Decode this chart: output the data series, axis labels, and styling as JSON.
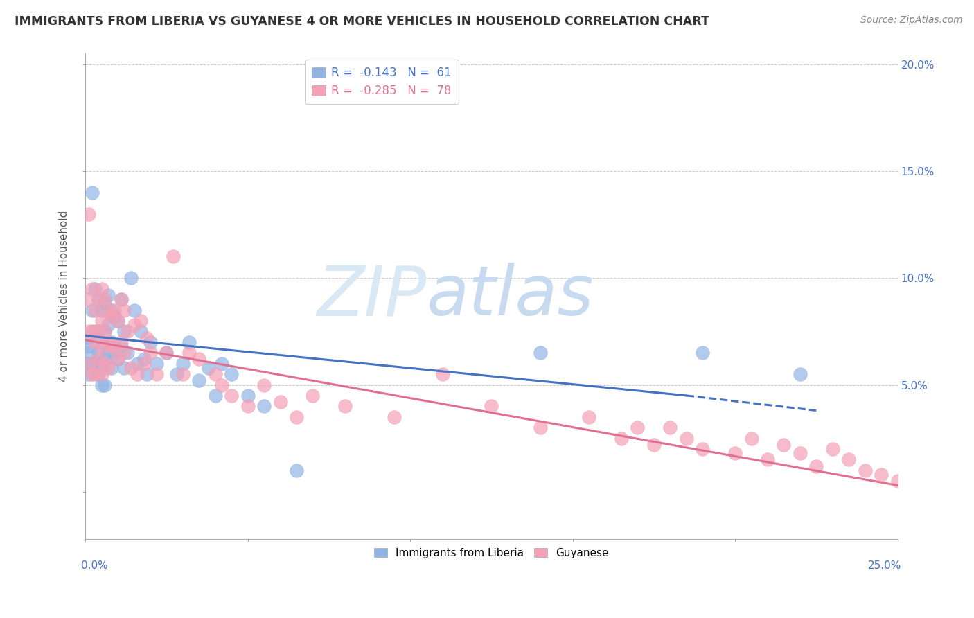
{
  "title": "IMMIGRANTS FROM LIBERIA VS GUYANESE 4 OR MORE VEHICLES IN HOUSEHOLD CORRELATION CHART",
  "source": "Source: ZipAtlas.com",
  "ylabel": "4 or more Vehicles in Household",
  "legend_entry1": "R =  -0.143   N =  61",
  "legend_entry2": "R =  -0.285   N =  78",
  "legend_label1": "Immigrants from Liberia",
  "legend_label2": "Guyanese",
  "color1": "#92b4e3",
  "color2": "#f4a0b5",
  "trendline1_color": "#4472c4",
  "trendline2_color": "#e07090",
  "watermark_zip": "ZIP",
  "watermark_atlas": "atlas",
  "xmin": 0.0,
  "xmax": 0.25,
  "ymin": -0.022,
  "ymax": 0.205,
  "liberia_x": [
    0.0005,
    0.0008,
    0.001,
    0.001,
    0.0015,
    0.002,
    0.002,
    0.002,
    0.003,
    0.003,
    0.003,
    0.004,
    0.004,
    0.004,
    0.004,
    0.005,
    0.005,
    0.005,
    0.005,
    0.006,
    0.006,
    0.006,
    0.006,
    0.007,
    0.007,
    0.007,
    0.008,
    0.008,
    0.008,
    0.009,
    0.009,
    0.01,
    0.01,
    0.011,
    0.011,
    0.012,
    0.012,
    0.013,
    0.014,
    0.015,
    0.016,
    0.017,
    0.018,
    0.019,
    0.02,
    0.022,
    0.025,
    0.028,
    0.03,
    0.032,
    0.035,
    0.038,
    0.04,
    0.042,
    0.045,
    0.05,
    0.055,
    0.065,
    0.14,
    0.19,
    0.22
  ],
  "liberia_y": [
    0.06,
    0.068,
    0.072,
    0.055,
    0.065,
    0.14,
    0.085,
    0.06,
    0.095,
    0.075,
    0.06,
    0.09,
    0.075,
    0.065,
    0.055,
    0.085,
    0.07,
    0.06,
    0.05,
    0.088,
    0.075,
    0.062,
    0.05,
    0.092,
    0.078,
    0.065,
    0.085,
    0.07,
    0.058,
    0.082,
    0.065,
    0.08,
    0.062,
    0.09,
    0.068,
    0.075,
    0.058,
    0.065,
    0.1,
    0.085,
    0.06,
    0.075,
    0.062,
    0.055,
    0.07,
    0.06,
    0.065,
    0.055,
    0.06,
    0.07,
    0.052,
    0.058,
    0.045,
    0.06,
    0.055,
    0.045,
    0.04,
    0.01,
    0.065,
    0.065,
    0.055
  ],
  "guyanese_x": [
    0.0005,
    0.001,
    0.001,
    0.0015,
    0.002,
    0.002,
    0.002,
    0.003,
    0.003,
    0.003,
    0.004,
    0.004,
    0.004,
    0.005,
    0.005,
    0.005,
    0.005,
    0.006,
    0.006,
    0.006,
    0.007,
    0.007,
    0.007,
    0.008,
    0.008,
    0.009,
    0.009,
    0.01,
    0.01,
    0.011,
    0.011,
    0.012,
    0.012,
    0.013,
    0.014,
    0.015,
    0.016,
    0.017,
    0.018,
    0.019,
    0.02,
    0.022,
    0.025,
    0.027,
    0.03,
    0.032,
    0.035,
    0.04,
    0.042,
    0.045,
    0.05,
    0.055,
    0.06,
    0.065,
    0.07,
    0.08,
    0.095,
    0.11,
    0.125,
    0.14,
    0.155,
    0.165,
    0.17,
    0.175,
    0.18,
    0.185,
    0.19,
    0.2,
    0.205,
    0.21,
    0.215,
    0.22,
    0.225,
    0.23,
    0.235,
    0.24,
    0.245,
    0.25
  ],
  "guyanese_y": [
    0.09,
    0.13,
    0.075,
    0.06,
    0.095,
    0.075,
    0.055,
    0.085,
    0.07,
    0.055,
    0.09,
    0.075,
    0.062,
    0.095,
    0.08,
    0.068,
    0.055,
    0.09,
    0.075,
    0.06,
    0.085,
    0.07,
    0.058,
    0.082,
    0.068,
    0.085,
    0.068,
    0.08,
    0.062,
    0.09,
    0.07,
    0.085,
    0.065,
    0.075,
    0.058,
    0.078,
    0.055,
    0.08,
    0.06,
    0.072,
    0.065,
    0.055,
    0.065,
    0.11,
    0.055,
    0.065,
    0.062,
    0.055,
    0.05,
    0.045,
    0.04,
    0.05,
    0.042,
    0.035,
    0.045,
    0.04,
    0.035,
    0.055,
    0.04,
    0.03,
    0.035,
    0.025,
    0.03,
    0.022,
    0.03,
    0.025,
    0.02,
    0.018,
    0.025,
    0.015,
    0.022,
    0.018,
    0.012,
    0.02,
    0.015,
    0.01,
    0.008,
    0.005
  ],
  "trendline1_x_start": 0.0,
  "trendline1_x_solid_end": 0.185,
  "trendline1_x_dash_end": 0.225,
  "trendline1_y_start": 0.073,
  "trendline1_y_solid_end": 0.045,
  "trendline1_y_dash_end": 0.038,
  "trendline2_x_start": 0.0,
  "trendline2_x_end": 0.25,
  "trendline2_y_start": 0.071,
  "trendline2_y_end": 0.003
}
